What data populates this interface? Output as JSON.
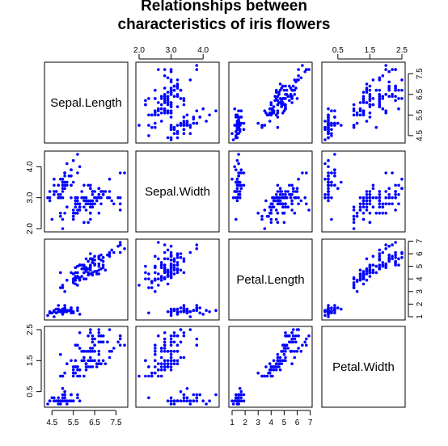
{
  "chart_data": {
    "type": "scatter",
    "subtype": "scatterplot-matrix",
    "title_lines": [
      "Relationships between",
      "characteristics of iris flowers"
    ],
    "variables": [
      "Sepal.Length",
      "Sepal.Width",
      "Petal.Length",
      "Petal.Width"
    ],
    "point_color": "#0000FF",
    "background": "#FFFFFF",
    "axes": {
      "Sepal.Length": {
        "range": [
          4.3,
          7.9
        ],
        "ticks": [
          4.5,
          5.5,
          6.5,
          7.5
        ],
        "tick_labels": [
          "4.5",
          "5.5",
          "6.5",
          "7.5"
        ]
      },
      "Sepal.Width": {
        "range": [
          2.0,
          4.4
        ],
        "ticks": [
          2.0,
          3.0,
          4.0
        ],
        "tick_labels": [
          "2.0",
          "3.0",
          "4.0"
        ]
      },
      "Petal.Length": {
        "range": [
          1.0,
          6.9
        ],
        "ticks": [
          1,
          2,
          3,
          4,
          5,
          6,
          7
        ],
        "tick_labels": [
          "1",
          "2",
          "3",
          "4",
          "5",
          "6",
          "7"
        ]
      },
      "Petal.Width": {
        "range": [
          0.1,
          2.5
        ],
        "ticks": [
          0.5,
          1.5,
          2.5
        ],
        "tick_labels": [
          "0.5",
          "1.5",
          "2.5"
        ]
      }
    },
    "axis_layout": {
      "top": [
        "Sepal.Width",
        "Petal.Width"
      ],
      "bottom": [
        "Sepal.Length",
        "Petal.Length"
      ],
      "left": [
        "Sepal.Width",
        "Petal.Width"
      ],
      "right": [
        "Sepal.Length",
        "Petal.Length"
      ]
    },
    "observations": [
      [
        5.1,
        3.5,
        1.4,
        0.2
      ],
      [
        4.9,
        3.0,
        1.4,
        0.2
      ],
      [
        4.7,
        3.2,
        1.3,
        0.2
      ],
      [
        4.6,
        3.1,
        1.5,
        0.2
      ],
      [
        5.0,
        3.6,
        1.4,
        0.2
      ],
      [
        5.4,
        3.9,
        1.7,
        0.4
      ],
      [
        4.6,
        3.4,
        1.4,
        0.3
      ],
      [
        5.0,
        3.4,
        1.5,
        0.2
      ],
      [
        4.4,
        2.9,
        1.4,
        0.2
      ],
      [
        4.9,
        3.1,
        1.5,
        0.1
      ],
      [
        5.4,
        3.7,
        1.5,
        0.2
      ],
      [
        4.8,
        3.4,
        1.6,
        0.2
      ],
      [
        4.8,
        3.0,
        1.4,
        0.1
      ],
      [
        4.3,
        3.0,
        1.1,
        0.1
      ],
      [
        5.8,
        4.0,
        1.2,
        0.2
      ],
      [
        5.7,
        4.4,
        1.5,
        0.4
      ],
      [
        5.4,
        3.9,
        1.3,
        0.4
      ],
      [
        5.1,
        3.5,
        1.4,
        0.3
      ],
      [
        5.7,
        3.8,
        1.7,
        0.3
      ],
      [
        5.1,
        3.8,
        1.5,
        0.3
      ],
      [
        5.4,
        3.4,
        1.7,
        0.2
      ],
      [
        5.1,
        3.7,
        1.5,
        0.4
      ],
      [
        4.6,
        3.6,
        1.0,
        0.2
      ],
      [
        5.1,
        3.3,
        1.7,
        0.5
      ],
      [
        4.8,
        3.4,
        1.9,
        0.2
      ],
      [
        5.0,
        3.0,
        1.6,
        0.2
      ],
      [
        5.0,
        3.4,
        1.6,
        0.4
      ],
      [
        5.2,
        3.5,
        1.5,
        0.2
      ],
      [
        5.2,
        3.4,
        1.4,
        0.2
      ],
      [
        4.7,
        3.2,
        1.6,
        0.2
      ],
      [
        4.8,
        3.1,
        1.6,
        0.2
      ],
      [
        5.4,
        3.4,
        1.5,
        0.4
      ],
      [
        5.2,
        4.1,
        1.5,
        0.1
      ],
      [
        5.5,
        4.2,
        1.4,
        0.2
      ],
      [
        4.9,
        3.1,
        1.5,
        0.2
      ],
      [
        5.0,
        3.2,
        1.2,
        0.2
      ],
      [
        5.5,
        3.5,
        1.3,
        0.2
      ],
      [
        4.9,
        3.6,
        1.4,
        0.1
      ],
      [
        4.4,
        3.0,
        1.3,
        0.2
      ],
      [
        5.1,
        3.4,
        1.5,
        0.2
      ],
      [
        5.0,
        3.5,
        1.3,
        0.3
      ],
      [
        4.5,
        2.3,
        1.3,
        0.3
      ],
      [
        4.4,
        3.2,
        1.3,
        0.2
      ],
      [
        5.0,
        3.5,
        1.6,
        0.6
      ],
      [
        5.1,
        3.8,
        1.9,
        0.4
      ],
      [
        4.8,
        3.0,
        1.4,
        0.3
      ],
      [
        5.1,
        3.8,
        1.6,
        0.2
      ],
      [
        4.6,
        3.2,
        1.4,
        0.2
      ],
      [
        5.3,
        3.7,
        1.5,
        0.2
      ],
      [
        5.0,
        3.3,
        1.4,
        0.2
      ],
      [
        7.0,
        3.2,
        4.7,
        1.4
      ],
      [
        6.4,
        3.2,
        4.5,
        1.5
      ],
      [
        6.9,
        3.1,
        4.9,
        1.5
      ],
      [
        5.5,
        2.3,
        4.0,
        1.3
      ],
      [
        6.5,
        2.8,
        4.6,
        1.5
      ],
      [
        5.7,
        2.8,
        4.5,
        1.3
      ],
      [
        6.3,
        3.3,
        4.7,
        1.6
      ],
      [
        4.9,
        2.4,
        3.3,
        1.0
      ],
      [
        6.6,
        2.9,
        4.6,
        1.3
      ],
      [
        5.2,
        2.7,
        3.9,
        1.4
      ],
      [
        5.0,
        2.0,
        3.5,
        1.0
      ],
      [
        5.9,
        3.0,
        4.2,
        1.5
      ],
      [
        6.0,
        2.2,
        4.0,
        1.0
      ],
      [
        6.1,
        2.9,
        4.7,
        1.4
      ],
      [
        5.6,
        2.9,
        3.6,
        1.3
      ],
      [
        6.7,
        3.1,
        4.4,
        1.4
      ],
      [
        5.6,
        3.0,
        4.5,
        1.5
      ],
      [
        5.8,
        2.7,
        4.1,
        1.0
      ],
      [
        6.2,
        2.2,
        4.5,
        1.5
      ],
      [
        5.6,
        2.5,
        3.9,
        1.1
      ],
      [
        5.9,
        3.2,
        4.8,
        1.8
      ],
      [
        6.1,
        2.8,
        4.0,
        1.3
      ],
      [
        6.3,
        2.5,
        4.9,
        1.5
      ],
      [
        6.1,
        2.8,
        4.7,
        1.2
      ],
      [
        6.4,
        2.9,
        4.3,
        1.3
      ],
      [
        6.6,
        3.0,
        4.4,
        1.4
      ],
      [
        6.8,
        2.8,
        4.8,
        1.4
      ],
      [
        6.7,
        3.0,
        5.0,
        1.7
      ],
      [
        6.0,
        2.9,
        4.5,
        1.5
      ],
      [
        5.7,
        2.6,
        3.5,
        1.0
      ],
      [
        5.5,
        2.4,
        3.8,
        1.1
      ],
      [
        5.5,
        2.4,
        3.7,
        1.0
      ],
      [
        5.8,
        2.7,
        3.9,
        1.2
      ],
      [
        6.0,
        2.7,
        5.1,
        1.6
      ],
      [
        5.4,
        3.0,
        4.5,
        1.5
      ],
      [
        6.0,
        3.4,
        4.5,
        1.6
      ],
      [
        6.7,
        3.1,
        4.7,
        1.5
      ],
      [
        6.3,
        2.3,
        4.4,
        1.3
      ],
      [
        5.6,
        3.0,
        4.1,
        1.3
      ],
      [
        5.5,
        2.5,
        4.0,
        1.3
      ],
      [
        5.5,
        2.6,
        4.4,
        1.2
      ],
      [
        6.1,
        3.0,
        4.6,
        1.4
      ],
      [
        5.8,
        2.6,
        4.0,
        1.2
      ],
      [
        5.0,
        2.3,
        3.3,
        1.0
      ],
      [
        5.6,
        2.7,
        4.2,
        1.3
      ],
      [
        5.7,
        3.0,
        4.2,
        1.2
      ],
      [
        5.7,
        2.9,
        4.2,
        1.3
      ],
      [
        6.2,
        2.9,
        4.3,
        1.3
      ],
      [
        5.1,
        2.5,
        3.0,
        1.1
      ],
      [
        5.7,
        2.8,
        4.1,
        1.3
      ],
      [
        6.3,
        3.3,
        6.0,
        2.5
      ],
      [
        5.8,
        2.7,
        5.1,
        1.9
      ],
      [
        7.1,
        3.0,
        5.9,
        2.1
      ],
      [
        6.3,
        2.9,
        5.6,
        1.8
      ],
      [
        6.5,
        3.0,
        5.8,
        2.2
      ],
      [
        7.6,
        3.0,
        6.6,
        2.1
      ],
      [
        4.9,
        2.5,
        4.5,
        1.7
      ],
      [
        7.3,
        2.9,
        6.3,
        1.8
      ],
      [
        6.7,
        2.5,
        5.8,
        1.8
      ],
      [
        7.2,
        3.6,
        6.1,
        2.5
      ],
      [
        6.5,
        3.2,
        5.1,
        2.0
      ],
      [
        6.4,
        2.7,
        5.3,
        1.9
      ],
      [
        6.8,
        3.0,
        5.5,
        2.1
      ],
      [
        5.7,
        2.5,
        5.0,
        2.0
      ],
      [
        5.8,
        2.8,
        5.1,
        2.4
      ],
      [
        6.4,
        3.2,
        5.3,
        2.3
      ],
      [
        6.5,
        3.0,
        5.5,
        1.8
      ],
      [
        7.7,
        3.8,
        6.7,
        2.2
      ],
      [
        7.7,
        2.6,
        6.9,
        2.3
      ],
      [
        6.0,
        2.2,
        5.0,
        1.5
      ],
      [
        6.9,
        3.2,
        5.7,
        2.3
      ],
      [
        5.6,
        2.8,
        4.9,
        2.0
      ],
      [
        7.7,
        2.8,
        6.7,
        2.0
      ],
      [
        6.3,
        2.7,
        4.9,
        1.8
      ],
      [
        6.7,
        3.3,
        5.7,
        2.1
      ],
      [
        7.2,
        3.2,
        6.0,
        1.8
      ],
      [
        6.2,
        2.8,
        4.8,
        1.8
      ],
      [
        6.1,
        3.0,
        4.9,
        1.8
      ],
      [
        6.4,
        2.8,
        5.6,
        2.1
      ],
      [
        7.2,
        3.0,
        5.8,
        1.6
      ],
      [
        7.4,
        2.8,
        6.1,
        1.9
      ],
      [
        7.9,
        3.8,
        6.4,
        2.0
      ],
      [
        6.4,
        2.8,
        5.6,
        2.2
      ],
      [
        6.3,
        2.8,
        5.1,
        1.5
      ],
      [
        6.1,
        2.6,
        5.6,
        1.4
      ],
      [
        7.7,
        3.0,
        6.1,
        2.3
      ],
      [
        6.3,
        3.4,
        5.6,
        2.4
      ],
      [
        6.4,
        3.1,
        5.5,
        1.8
      ],
      [
        6.0,
        3.0,
        4.8,
        1.8
      ],
      [
        6.9,
        3.1,
        5.4,
        2.1
      ],
      [
        6.7,
        3.1,
        5.6,
        2.4
      ],
      [
        6.9,
        3.1,
        5.1,
        2.3
      ],
      [
        5.8,
        2.7,
        5.1,
        1.9
      ],
      [
        6.8,
        3.2,
        5.9,
        2.3
      ],
      [
        6.7,
        3.3,
        5.7,
        2.5
      ],
      [
        6.7,
        3.0,
        5.2,
        2.3
      ],
      [
        6.3,
        2.5,
        5.0,
        1.9
      ],
      [
        6.5,
        3.0,
        5.2,
        2.0
      ],
      [
        6.2,
        3.4,
        5.4,
        2.3
      ],
      [
        5.9,
        3.0,
        5.1,
        1.8
      ]
    ]
  }
}
